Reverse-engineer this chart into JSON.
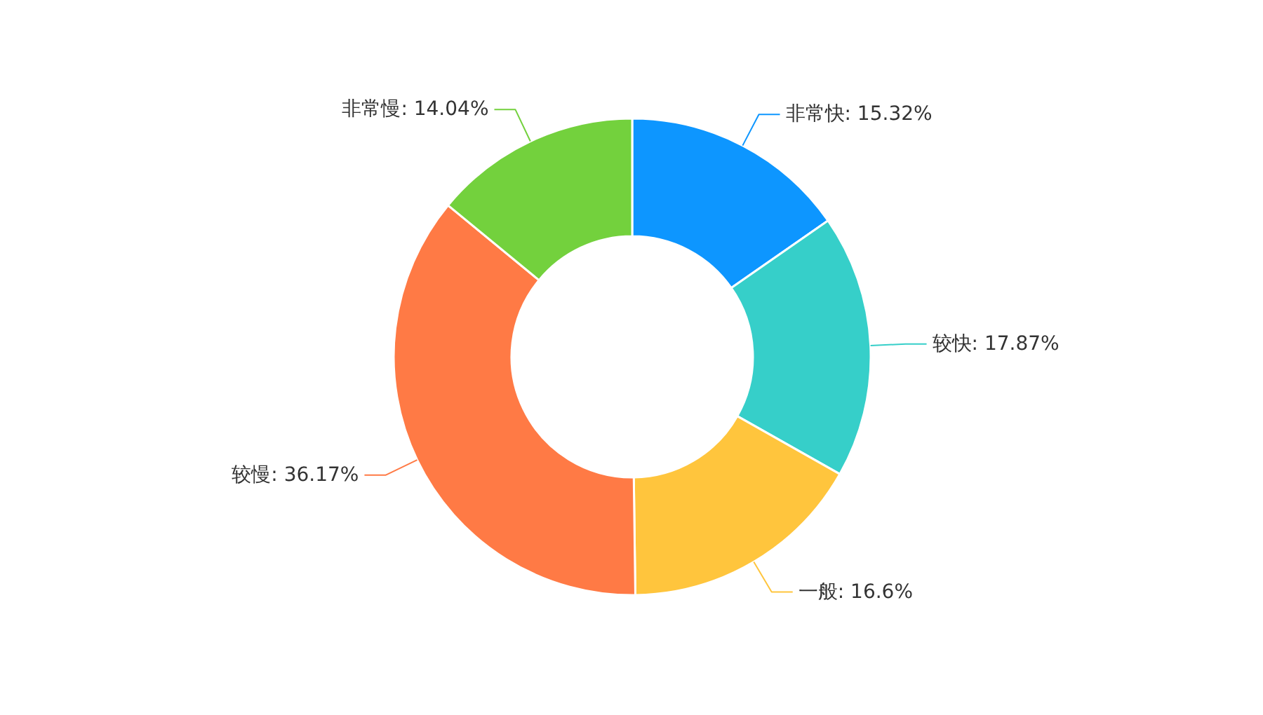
{
  "chart_data": {
    "type": "donut",
    "categories": [
      "非常快",
      "较快",
      "一般",
      "较慢",
      "非常慢"
    ],
    "values": [
      15.32,
      17.87,
      16.6,
      36.17,
      14.04
    ],
    "value_labels": [
      "15.32%",
      "17.87%",
      "16.6%",
      "36.17%",
      "14.04%"
    ],
    "colors": [
      "#0d96ff",
      "#36cfc9",
      "#ffc53d",
      "#ff7a45",
      "#73d13d"
    ]
  }
}
